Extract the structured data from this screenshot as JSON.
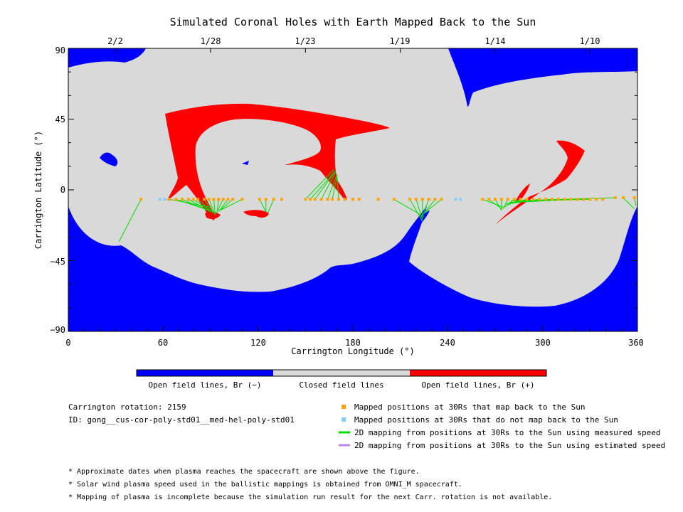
{
  "chart_data": {
    "type": "map",
    "title": "Simulated Coronal Holes with Earth Mapped Back to the Sun",
    "xlabel": "Carrington Longitude (°)",
    "ylabel": "Carrington Latitude (°)",
    "xlim": [
      0,
      360
    ],
    "ylim": [
      -90,
      90
    ],
    "x_ticks": [
      "0",
      "60",
      "120",
      "180",
      "240",
      "300",
      "360"
    ],
    "y_ticks": [
      "90",
      "45",
      "0",
      "−45",
      "−90"
    ],
    "top_axis_dates": [
      {
        "label": "2/2",
        "lon": 30
      },
      {
        "label": "1/28",
        "lon": 90
      },
      {
        "label": "1/23",
        "lon": 150
      },
      {
        "label": "1/19",
        "lon": 210
      },
      {
        "label": "1/14",
        "lon": 270
      },
      {
        "label": "1/10",
        "lon": 330
      }
    ],
    "colors": {
      "open_negative": "#0000ff",
      "closed": "#d9d9d9",
      "open_positive": "#ff0000",
      "mapped": "#ffa500",
      "unmapped": "#87cefa",
      "measured": "#00dd00",
      "estimated": "#bb88ee"
    },
    "colorbar": [
      {
        "label": "Open field lines, Br (−)",
        "color": "#0000ff"
      },
      {
        "label": "Closed field lines",
        "color": "#d9d9d9"
      },
      {
        "label": "Open field lines, Br (+)",
        "color": "#ff0000"
      }
    ],
    "mapped_points": [
      {
        "lon": 46,
        "lat": -6
      },
      {
        "lon": 64,
        "lat": -6
      },
      {
        "lon": 68,
        "lat": -6
      },
      {
        "lon": 72,
        "lat": -6
      },
      {
        "lon": 76,
        "lat": -6
      },
      {
        "lon": 79,
        "lat": -6
      },
      {
        "lon": 82,
        "lat": -6
      },
      {
        "lon": 86,
        "lat": -6
      },
      {
        "lon": 89,
        "lat": -6
      },
      {
        "lon": 92,
        "lat": -6
      },
      {
        "lon": 95,
        "lat": -6
      },
      {
        "lon": 98,
        "lat": -6
      },
      {
        "lon": 101,
        "lat": -6
      },
      {
        "lon": 104,
        "lat": -6
      },
      {
        "lon": 110,
        "lat": -6
      },
      {
        "lon": 121,
        "lat": -6
      },
      {
        "lon": 125,
        "lat": -6
      },
      {
        "lon": 130,
        "lat": -6
      },
      {
        "lon": 135,
        "lat": -6
      },
      {
        "lon": 150,
        "lat": -6
      },
      {
        "lon": 153,
        "lat": -6
      },
      {
        "lon": 156,
        "lat": -6
      },
      {
        "lon": 160,
        "lat": -6
      },
      {
        "lon": 164,
        "lat": -6
      },
      {
        "lon": 167,
        "lat": -6
      },
      {
        "lon": 171,
        "lat": -6
      },
      {
        "lon": 175,
        "lat": -6
      },
      {
        "lon": 180,
        "lat": -6
      },
      {
        "lon": 184,
        "lat": -6
      },
      {
        "lon": 196,
        "lat": -6
      },
      {
        "lon": 206,
        "lat": -6
      },
      {
        "lon": 216,
        "lat": -6
      },
      {
        "lon": 220,
        "lat": -6
      },
      {
        "lon": 224,
        "lat": -6
      },
      {
        "lon": 228,
        "lat": -6
      },
      {
        "lon": 232,
        "lat": -6
      },
      {
        "lon": 236,
        "lat": -6
      },
      {
        "lon": 262,
        "lat": -6
      },
      {
        "lon": 266,
        "lat": -6
      },
      {
        "lon": 270,
        "lat": -6
      },
      {
        "lon": 274,
        "lat": -6
      },
      {
        "lon": 278,
        "lat": -6
      },
      {
        "lon": 282,
        "lat": -6
      },
      {
        "lon": 286,
        "lat": -6
      },
      {
        "lon": 290,
        "lat": -6
      },
      {
        "lon": 294,
        "lat": -6
      },
      {
        "lon": 298,
        "lat": -6
      },
      {
        "lon": 302,
        "lat": -6
      },
      {
        "lon": 306,
        "lat": -6
      },
      {
        "lon": 310,
        "lat": -6
      },
      {
        "lon": 314,
        "lat": -6
      },
      {
        "lon": 318,
        "lat": -6
      },
      {
        "lon": 322,
        "lat": -6
      },
      {
        "lon": 326,
        "lat": -6
      },
      {
        "lon": 330,
        "lat": -6
      },
      {
        "lon": 334,
        "lat": -6
      },
      {
        "lon": 338,
        "lat": -6
      },
      {
        "lon": 346,
        "lat": -5
      },
      {
        "lon": 351,
        "lat": -5
      },
      {
        "lon": 358,
        "lat": -5
      }
    ],
    "unmapped_points": [
      {
        "lon": 58,
        "lat": -6
      },
      {
        "lon": 61,
        "lat": -6
      },
      {
        "lon": 245,
        "lat": -6
      },
      {
        "lon": 248,
        "lat": -6
      }
    ],
    "measured_lines": [
      [
        46,
        -6,
        32,
        -33
      ],
      [
        64,
        -6,
        90,
        -11
      ],
      [
        68,
        -6,
        89,
        -13
      ],
      [
        72,
        -6,
        88,
        -13
      ],
      [
        76,
        -6,
        90,
        -14
      ],
      [
        79,
        -6,
        91,
        -14
      ],
      [
        82,
        -6,
        91,
        -14
      ],
      [
        86,
        -6,
        92,
        -15
      ],
      [
        89,
        -6,
        93,
        -16
      ],
      [
        92,
        -6,
        93,
        -16
      ],
      [
        95,
        -6,
        94,
        -15
      ],
      [
        98,
        -6,
        94,
        -14
      ],
      [
        101,
        -6,
        95,
        -14
      ],
      [
        104,
        -6,
        96,
        -13
      ],
      [
        110,
        -6,
        96,
        -13
      ],
      [
        121,
        -6,
        125,
        -14
      ],
      [
        125,
        -6,
        125,
        -14
      ],
      [
        130,
        -6,
        126,
        -15
      ],
      [
        150,
        -6,
        168,
        13
      ],
      [
        153,
        -6,
        169,
        12
      ],
      [
        156,
        -6,
        169,
        12
      ],
      [
        160,
        -6,
        169,
        11
      ],
      [
        164,
        -6,
        170,
        10
      ],
      [
        167,
        -6,
        170,
        9
      ],
      [
        171,
        -6,
        170,
        8
      ],
      [
        206,
        -6,
        225,
        -17
      ],
      [
        216,
        -6,
        224,
        -20
      ],
      [
        220,
        -6,
        224,
        -19
      ],
      [
        224,
        -6,
        224,
        -18
      ],
      [
        228,
        -6,
        224,
        -17
      ],
      [
        232,
        -6,
        225,
        -15
      ],
      [
        236,
        -6,
        226,
        -14
      ],
      [
        262,
        -6,
        275,
        -11
      ],
      [
        266,
        -6,
        274,
        -12
      ],
      [
        270,
        -6,
        274,
        -13
      ],
      [
        274,
        -6,
        274,
        -13
      ],
      [
        278,
        -6,
        275,
        -12
      ],
      [
        282,
        -6,
        276,
        -11
      ],
      [
        286,
        -6,
        277,
        -10
      ],
      [
        290,
        -6,
        277,
        -9
      ],
      [
        298,
        -6,
        278,
        -9
      ],
      [
        306,
        -6,
        279,
        -8
      ],
      [
        314,
        -6,
        279,
        -8
      ],
      [
        322,
        -6,
        280,
        -8
      ],
      [
        330,
        -6,
        280,
        -7
      ],
      [
        346,
        -5,
        281,
        -7
      ],
      [
        351,
        -5,
        358,
        -12
      ],
      [
        358,
        -5,
        359,
        -10
      ]
    ],
    "estimated_lines": []
  },
  "legend": {
    "mapped": "Mapped positions at 30Rs that map back to the Sun",
    "unmapped": "Mapped positions at 30Rs that do not map back to the Sun",
    "measured": "2D mapping from positions at 30Rs to the Sun using measured speed",
    "estimated": "2D mapping from positions at 30Rs to the Sun using estimated speed"
  },
  "info": {
    "rotation": "Carrington rotation: 2159",
    "run_id": "ID: gong__cus-cor-poly-std01__med-hel-poly-std01"
  },
  "notes": [
    "* Approximate dates when plasma reaches the spacecraft are shown above the figure.",
    "* Solar wind plasma speed used in the ballistic mappings is obtained from OMNI_M spacecraft.",
    "* Mapping of plasma is incomplete because the simulation run result for the next Carr. rotation is not available."
  ]
}
